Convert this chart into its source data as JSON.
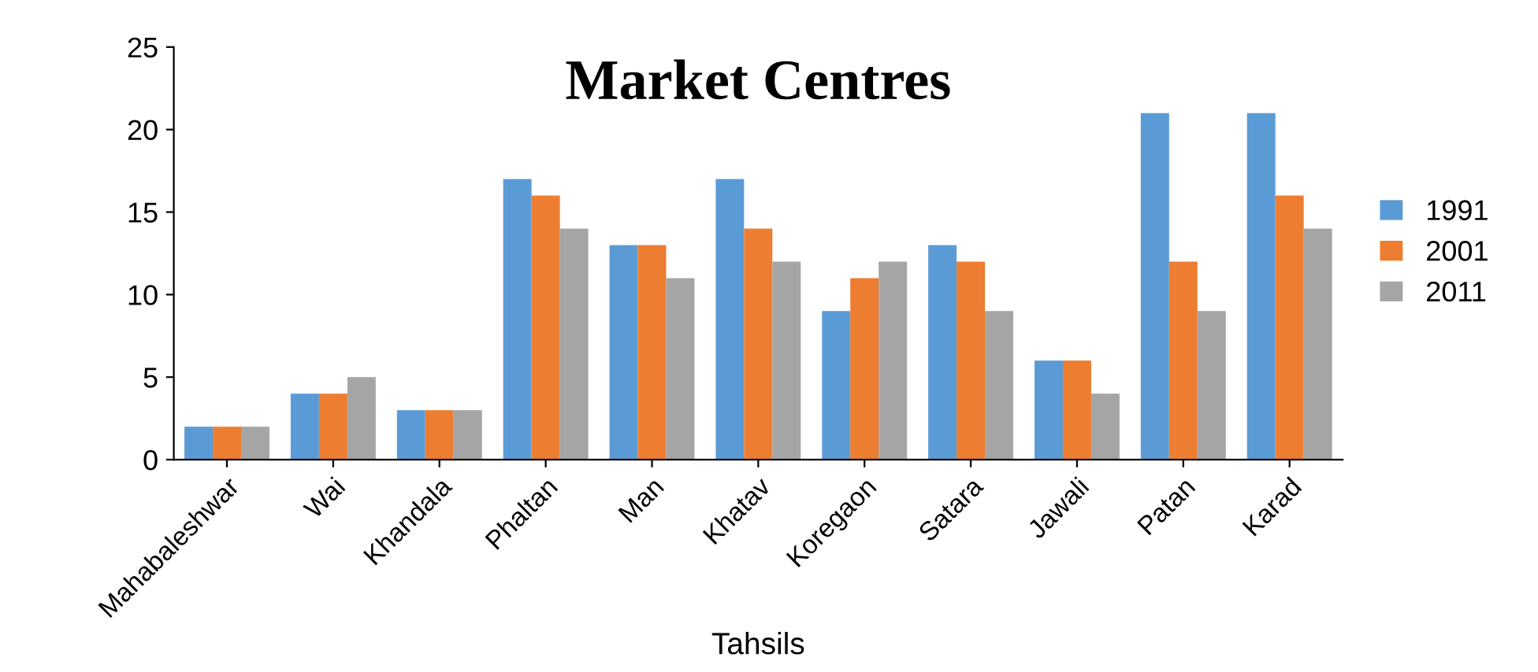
{
  "chart_data": {
    "type": "bar",
    "title": "Market Centres",
    "xlabel": "Tahsils",
    "categories": [
      "Mahabaleshwar",
      "Wai",
      "Khandala",
      "Phaltan",
      "Man",
      "Khatav",
      "Koregaon",
      "Satara",
      "Jawali",
      "Patan",
      "Karad"
    ],
    "series": [
      {
        "name": "1991",
        "color": "#5b9bd5",
        "values": [
          2,
          4,
          3,
          17,
          13,
          17,
          9,
          13,
          6,
          21,
          21
        ]
      },
      {
        "name": "2001",
        "color": "#ed7d31",
        "values": [
          2,
          4,
          3,
          16,
          13,
          14,
          11,
          12,
          6,
          12,
          16
        ]
      },
      {
        "name": "2011",
        "color": "#a5a5a5",
        "values": [
          2,
          5,
          3,
          14,
          11,
          12,
          12,
          9,
          4,
          9,
          14
        ]
      }
    ],
    "ylim": [
      0,
      25
    ],
    "yticks": [
      0,
      5,
      10,
      15,
      20,
      25
    ],
    "grid": false,
    "legend": "right"
  }
}
